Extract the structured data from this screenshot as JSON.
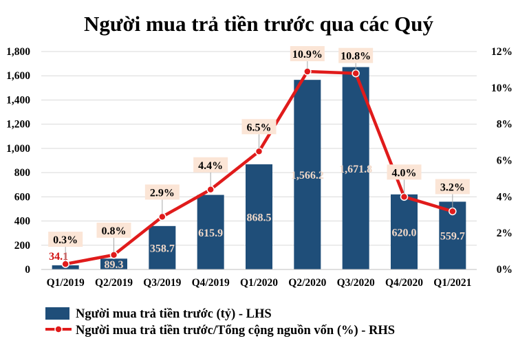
{
  "chart_data": {
    "type": "bar+line",
    "title": "Người mua trả tiền trước qua các Quý",
    "categories": [
      "Q1/2019",
      "Q2/2019",
      "Q3/2019",
      "Q4/2019",
      "Q1/2020",
      "Q2/2020",
      "Q3/2020",
      "Q4/2020",
      "Q1/2021"
    ],
    "series": [
      {
        "name": "Người mua trả tiền trước (tỷ) - LHS",
        "type": "bar",
        "axis": "left",
        "color": "#1f4e79",
        "values": [
          34.1,
          89.3,
          358.7,
          615.9,
          868.5,
          1566.2,
          1671.8,
          620.0,
          559.7
        ],
        "labels": [
          "34.1",
          "89.3",
          "358.7",
          "615.9",
          "868.5",
          "1,566.2",
          "1,671.8",
          "620.0",
          "559.7"
        ]
      },
      {
        "name": "Người mua trả tiền trước/Tổng cộng nguồn vốn (%) - RHS",
        "type": "line",
        "axis": "right",
        "color": "#e01b1b",
        "values": [
          0.3,
          0.8,
          2.9,
          4.4,
          6.5,
          10.9,
          10.8,
          4.0,
          3.2
        ],
        "labels": [
          "0.3%",
          "0.8%",
          "2.9%",
          "4.4%",
          "6.5%",
          "10.9%",
          "10.8%",
          "4.0%",
          "3.2%"
        ]
      }
    ],
    "y_left": {
      "ylim": [
        0,
        1800
      ],
      "ticks": [
        0,
        200,
        400,
        600,
        800,
        1000,
        1200,
        1400,
        1600,
        1800
      ],
      "tick_labels": [
        "0",
        "200",
        "400",
        "600",
        "800",
        "1,000",
        "1,200",
        "1,400",
        "1,600",
        "1,800"
      ]
    },
    "y_right": {
      "ylim": [
        0,
        12
      ],
      "ticks": [
        0,
        2,
        4,
        6,
        8,
        10,
        12
      ],
      "tick_labels": [
        "0%",
        "2%",
        "4%",
        "6%",
        "8%",
        "10%",
        "12%"
      ]
    },
    "grid": true,
    "legend_position": "bottom-left",
    "label_box_color": "#fbe5d6"
  }
}
